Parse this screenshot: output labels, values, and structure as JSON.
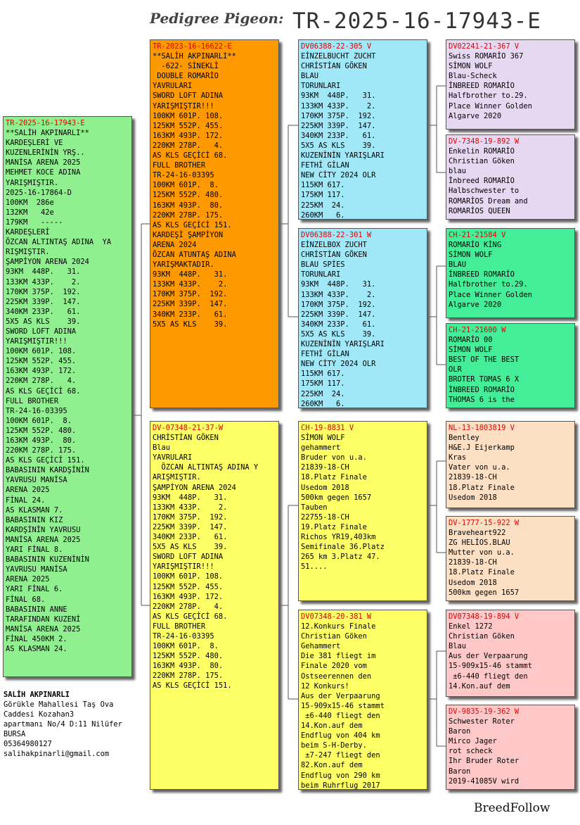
{
  "header": {
    "label": "Pedigree Pigeon:",
    "id": "TR-2025-16-17943-E"
  },
  "colors": {
    "green": "#90f090",
    "orange": "#ff9900",
    "yellow": "#ffff66",
    "cyan": "#a0e8f8",
    "lavender": "#e6d8f0",
    "mint": "#44ee99",
    "peach": "#fde0c4",
    "pink": "#ffc8c8"
  },
  "cards": {
    "subject": {
      "id": "TR-2025-16-17943-E",
      "lines": [
        "**SALİH AKPINARLI**",
        "KARDEŞLERİ VE",
        "KUZENLERİNİN YRŞ..",
        "MANİSA ARENA 2025",
        "MEHMET KOCE ADINA",
        "YARIŞMIŞTIR.",
        "2025-16-17864-D",
        "100KM  286e",
        "132KM   42e",
        "179KM   -----",
        "KARDEŞLERİ",
        "ÖZCAN ALTINTAŞ ADINA  YA",
        "RIŞMIŞTIR.",
        "ŞAMPİYON ARENA 2024",
        "93KM  448P.   31.",
        "133KM 433P.    2.",
        "170KM 375P.  192.",
        "225KM 339P.  147.",
        "340KM 233P.   61.",
        "5X5 AS KLS    39.",
        "SWORD LOFT ADINA",
        "YARIŞMIŞTIR!!!",
        "100KM 601P. 108.",
        "125KM 552P. 455.",
        "163KM 493P. 172.",
        "220KM 278P.   4.",
        "AS KLS GEÇİCİ 68.",
        "FULL BROTHER",
        "TR-24-16-03395",
        "100KM 601P.  8.",
        "125KM 552P. 480.",
        "163KM 493P.  80.",
        "220KM 278P. 175.",
        "AS KLS GEÇİCİ 151.",
        "BABASININ KARDŞİNİN",
        "YAVRUSU MANİSA",
        "ARENA 2025",
        "FİNAL 24.",
        "AS KLASMAN 7.",
        "BABASININ KIZ",
        "KARDŞİNİN YAVRUSU",
        "MANİSA ARENA 2025",
        "YARI FİNAL 8.",
        "BABASININ KUZENİNİN",
        "YAVRUSU MANİSA",
        "ARENA 2025",
        "YARI FİNAL 6.",
        "FİNAL 68.",
        "BABASININ ANNE",
        "TARAFINDAN KUZENİ",
        "MANİSA ARENA 2025",
        "FİNAL 450KM 2.",
        "AS KLASMAN 24."
      ]
    },
    "sire": {
      "id": "TR-2023-16-16622-E",
      "lines": [
        "**SALİH AKPINARLI**",
        "  -622- SİNEKLİ",
        " DOUBLE ROMARİO",
        "YAVRULARI",
        "SWORD LOFT ADINA",
        "YARIŞMIŞTIR!!!",
        "100KM 601P. 108.",
        "125KM 552P. 455.",
        "163KM 493P. 172.",
        "220KM 278P.   4.",
        "AS KLS GEÇİCİ 68.",
        "FULL BROTHER",
        "TR-24-16-03395",
        "100KM 601P.  8.",
        "125KM 552P. 480.",
        "163KM 493P.  80.",
        "220KM 278P. 175.",
        "AS KLS GEÇİCİ 151.",
        "KARDEŞİ ŞAMPİYON",
        "ARENA 2024",
        "ÖZCAN ATUNTAŞ ADINA",
        "YARIŞMAKTADIR.",
        "93KM  448P.   31.",
        "133KM 433P.    2.",
        "170KM 375P.  192.",
        "225KM 339P.  147.",
        "340KM 233P.   61.",
        "5X5 AS KLS    39."
      ]
    },
    "dam": {
      "id": "DV-07348-21-37-W",
      "lines": [
        "CHRİSTİAN GÖKEN",
        "Blau",
        "YAVRULARI",
        "  ÖZCAN ALTINTAŞ ADINA Y",
        "ARIŞMIŞTIR.",
        "ŞAMPİYON ARENA 2024",
        "93KM  448P.   31.",
        "133KM 433P.    2.",
        "170KM 375P.  192.",
        "225KM 339P.  147.",
        "340KM 233P.   61.",
        "5X5 AS KLS    39.",
        "SWORD LOFT ADINA",
        "YARIŞMIŞTIR!!!",
        "100KM 601P. 108.",
        "125KM 552P. 455.",
        "163KM 493P. 172.",
        "220KM 278P.   4.",
        "AS KLS GEÇİCİ 68.",
        "FULL BROTHER",
        "TR-24-16-03395",
        "100KM 601P.  8.",
        "125KM 552P. 480.",
        "163KM 493P.  80.",
        "220KM 278P. 175.",
        "AS KLS GEÇİCİ 151."
      ]
    },
    "ss": {
      "id": "DV06388-22-305 V",
      "lines": [
        "EİNZELBUCHT ZUCHT",
        "CHRİSTİAN GÖKEN",
        "BLAU",
        "TORUNLARI",
        "93KM  448P.   31.",
        "133KM 433P.    2.",
        "170KM 375P.  192.",
        "225KM 339P.  147.",
        "340KM 233P.   61.",
        "5X5 AS KLS    39.",
        "KUZENİNİN YARIŞLARI",
        "FETHİ GİLAN",
        "NEW CİTY 2024 OLR",
        "115KM 617.",
        "175KM 117.",
        "225KM  24.",
        "260KM   6."
      ]
    },
    "sd": {
      "id": "DV06388-22-301 W",
      "lines": [
        "EİNZELBOX ZUCHT",
        "CHRİSTİAN GÖKEN",
        "BLAU SPİES",
        "TORUNLARI",
        "93KM  448P.   31.",
        "133KM 433P.    2.",
        "170KM 375P.  192.",
        "225KM 339P.  147.",
        "340KM 233P.   61.",
        "5X5 AS KLS    39.",
        "KUZENİNİN YARIŞLARI",
        "FETHİ GİLAN",
        "NEW CİTY 2024 OLR",
        "115KM 617.",
        "175KM 117.",
        "225KM  24.",
        "260KM   6."
      ]
    },
    "ds": {
      "id": "CH-19-8831 V",
      "lines": [
        "SİMON WOLF",
        "gehammert",
        "Bruder von u.a.",
        "21839-18-CH",
        "18.Platz Finale",
        "Usedom 2018",
        "500km gegen 1657",
        "Tauben",
        "22755-18-CH",
        "19.Platz Finale",
        "Richos YR19,403km",
        "Semifinale 36.Platz",
        "265 km 3.Platz 47.",
        "51...."
      ]
    },
    "dd": {
      "id": "DV07348-20-381 W",
      "lines": [
        "12.Konkurs Finale",
        "Christian Göken",
        "Gehammert",
        "Die 381 fliegt im",
        "Finale 2020 vom",
        "Ostseerennen den",
        "12 Konkurs!",
        "Aus der Verpaarung",
        "15-909x15-46 stammt",
        " ±6-440 fliegt den",
        "14.Kon.auf dem",
        "Endflug von 404 km",
        "beim S-H-Derby.",
        " ±7-247 fliegt den",
        "82.Kon.auf dem",
        "Endflug von 290 km",
        "beim Ruhrflug 2017"
      ]
    },
    "sss": {
      "id": "DV02241-21-367 V",
      "lines": [
        "Swiss ROMARİO 367",
        "SİMON WOLF",
        "Blau-Scheck",
        "İNBREED ROMARİO",
        "Halfbrother to.29.",
        "Place Winner Golden",
        "Algarve 2020"
      ]
    },
    "ssd": {
      "id": "DV-7348-19-892 W",
      "lines": [
        "Enkelin ROMARİO",
        "Christian Göken",
        "blau",
        "İnbreed ROMARİO",
        "Halbschwester to",
        "ROMARİOS Dream and",
        "ROMARİOS QUEEN"
      ]
    },
    "sds": {
      "id": "CH-21-21584 V",
      "lines": [
        "ROMARİO KİNG",
        "SİMON WOLF",
        "BLAU",
        "İNBREED ROMARİO",
        "Halfbrother to.29.",
        "Place Winner Golden",
        "Algarve 2020"
      ]
    },
    "sdd": {
      "id": "CH-21-21600 W",
      "lines": [
        "ROMARİO 00",
        "SİMON WOLF",
        "BEST OF THE BEST",
        "OLR",
        "BROTER TOMAS 6 X",
        "İNBREED ROMARİO",
        "THOMAS 6 is the"
      ]
    },
    "dss": {
      "id": "NL-13-1803819 V",
      "lines": [
        "Bentley",
        "H&E.J Eijerkamp",
        "Kras",
        "Vater von u.a.",
        "21839-18-CH",
        "18.Platz Finale",
        "Usedom 2018"
      ]
    },
    "dsd": {
      "id": "DV-1777-15-922 W",
      "lines": [
        "Braveheart922",
        "ZG HELİOS.BLAU",
        "Mutter von u.a.",
        "21839-18-CH",
        "18.Platz Finale",
        "Usedom 2018",
        "500km gegen 1657"
      ]
    },
    "dds": {
      "id": "DV07348-19-894 V",
      "lines": [
        "Enkel 1272",
        "Christian Göken",
        "Blau",
        "Aus der Verpaarung",
        "15-909x15-46 stammt",
        " ±6-440 fliegt den",
        "14.Kon.auf dem"
      ]
    },
    "ddd": {
      "id": "DV-9835-19-362 W",
      "lines": [
        "Schwester Roter",
        "Baron",
        "Mirco Jager",
        "rot scheck",
        "Ihr Bruder Roter",
        "Baron",
        "2019-41085V wird"
      ]
    }
  },
  "owner": {
    "name": "SALİH AKPINARLI",
    "address1": "Görükle Mahallesi Taş Ova",
    "address2": "Caddesi Kozahan3",
    "address3": "apartmanı No/4 D:11 Nilüfer",
    "city": "BURSA",
    "phone": "05364980127",
    "email": "salihakpinarli@gmail.com"
  },
  "brand": "BreedFollow"
}
